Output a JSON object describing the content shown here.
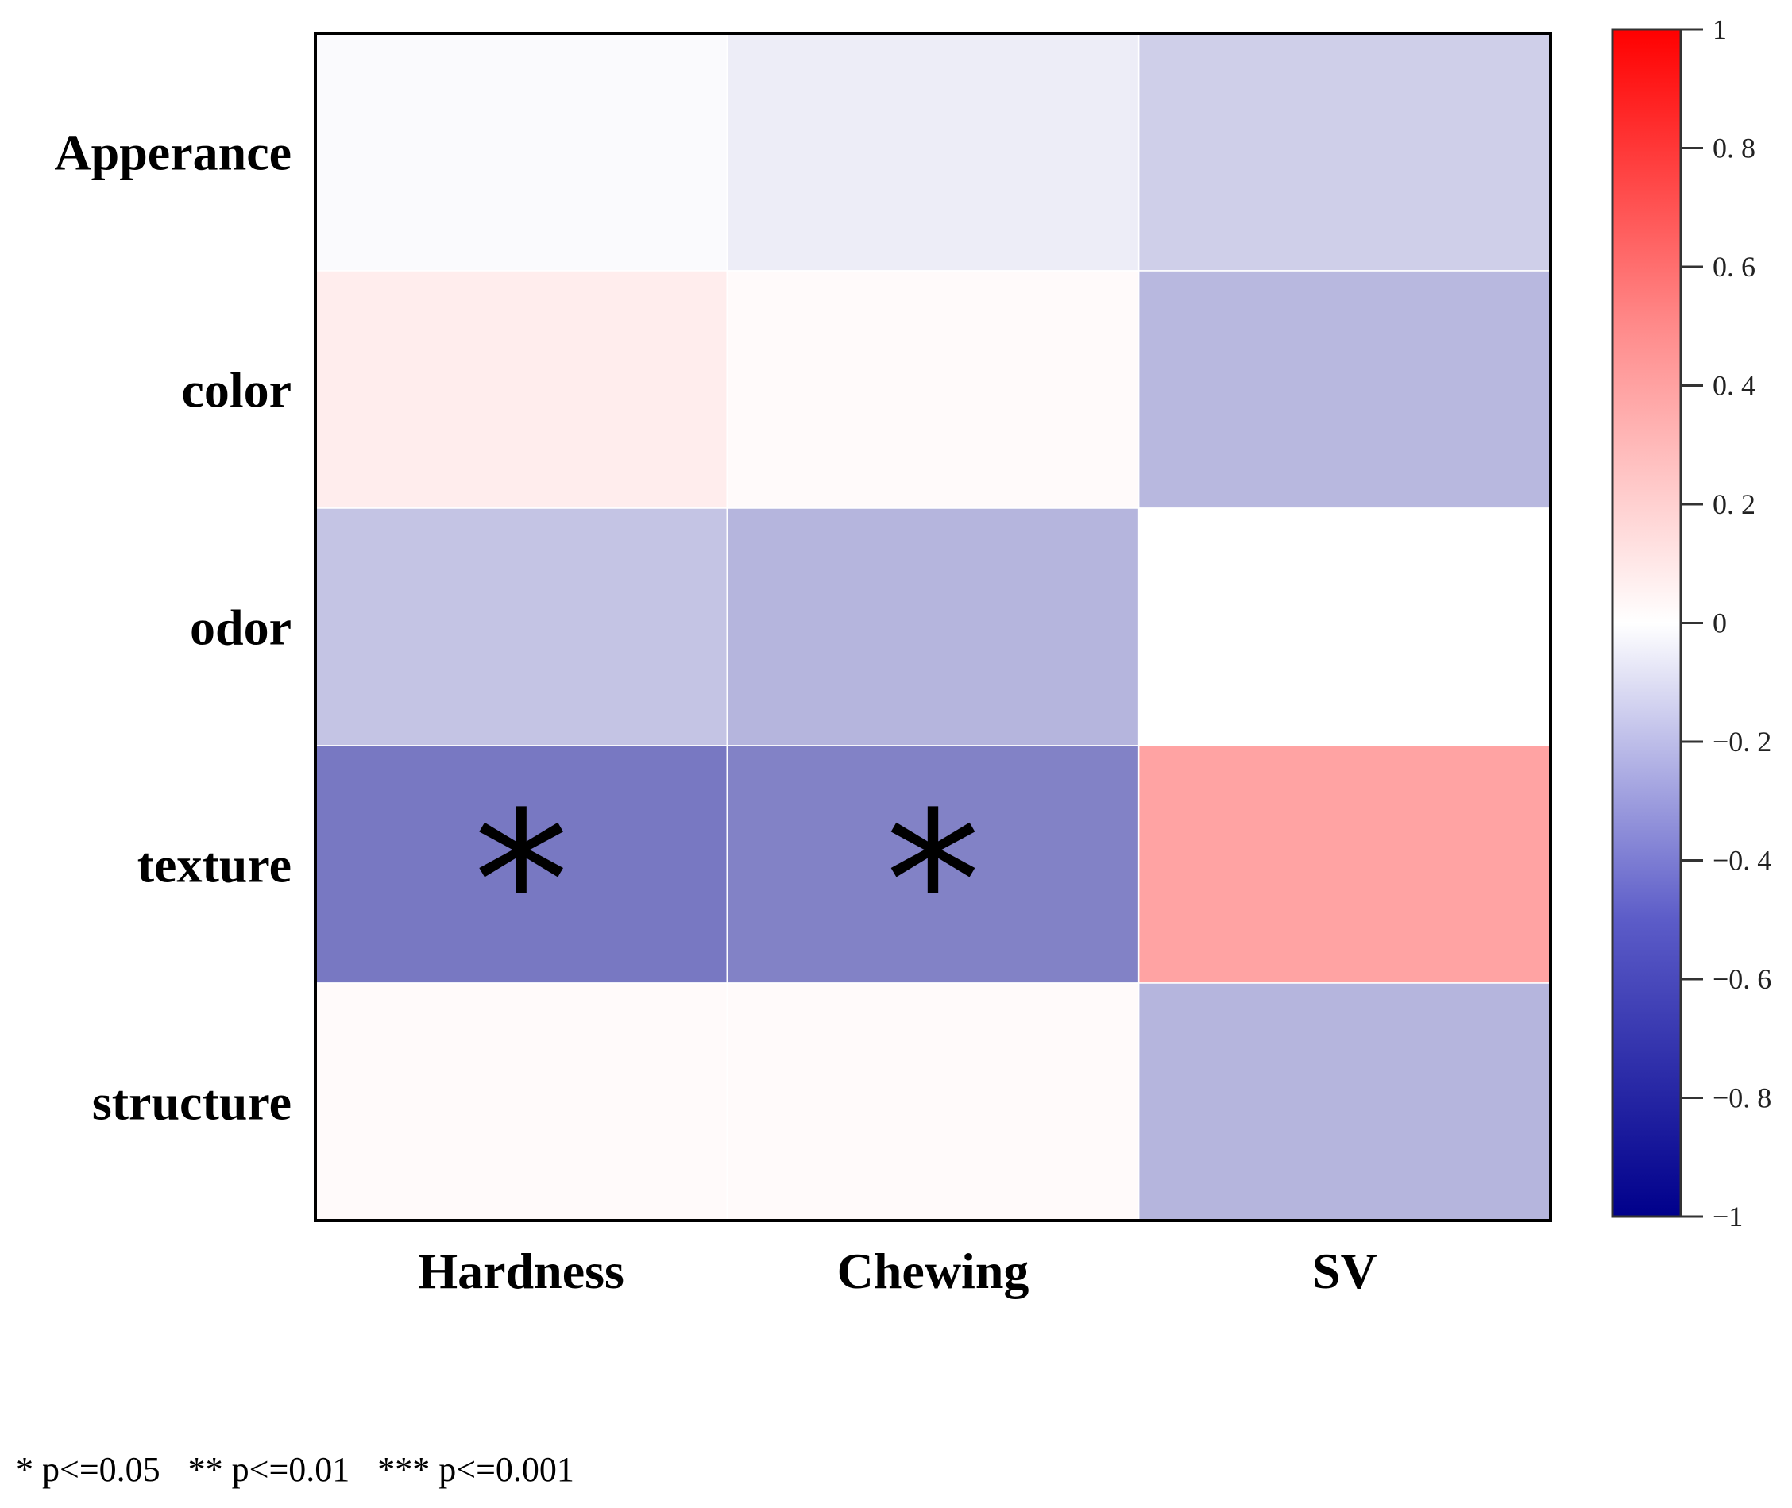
{
  "chart_data": {
    "type": "heatmap",
    "title": "",
    "xlabel": "",
    "ylabel": "",
    "rows": [
      "Apperance",
      "color",
      "odor",
      "texture",
      "structure"
    ],
    "columns": [
      "Hardness",
      "Chewing",
      "SV"
    ],
    "values": [
      [
        -0.02,
        -0.07,
        -0.19
      ],
      [
        0.07,
        0.02,
        -0.28
      ],
      [
        -0.23,
        -0.29,
        0.0
      ],
      [
        -0.53,
        -0.49,
        0.36
      ],
      [
        0.02,
        0.02,
        -0.29
      ]
    ],
    "significance": [
      [
        "",
        "",
        ""
      ],
      [
        "",
        "",
        ""
      ],
      [
        "",
        "",
        ""
      ],
      [
        "*",
        "*",
        ""
      ],
      [
        "",
        "",
        ""
      ]
    ],
    "colorbar": {
      "range": [
        -1,
        1
      ],
      "ticks": [
        1,
        0.8,
        0.6,
        0.4,
        0.2,
        0,
        -0.2,
        -0.4,
        -0.6,
        -0.8,
        -1
      ],
      "tick_labels": [
        "1",
        "0. 8",
        "0. 6",
        "0. 4",
        "0. 2",
        "0",
        "−0. 2",
        "−0. 4",
        "−0. 6",
        "−0. 8",
        "−1"
      ],
      "low_color": "#00008b",
      "mid_color": "#ffffff",
      "high_color": "#ff0000"
    },
    "legend_note": [
      "* p<=0.05",
      "** p<=0.01",
      "*** p<=0.001"
    ]
  }
}
